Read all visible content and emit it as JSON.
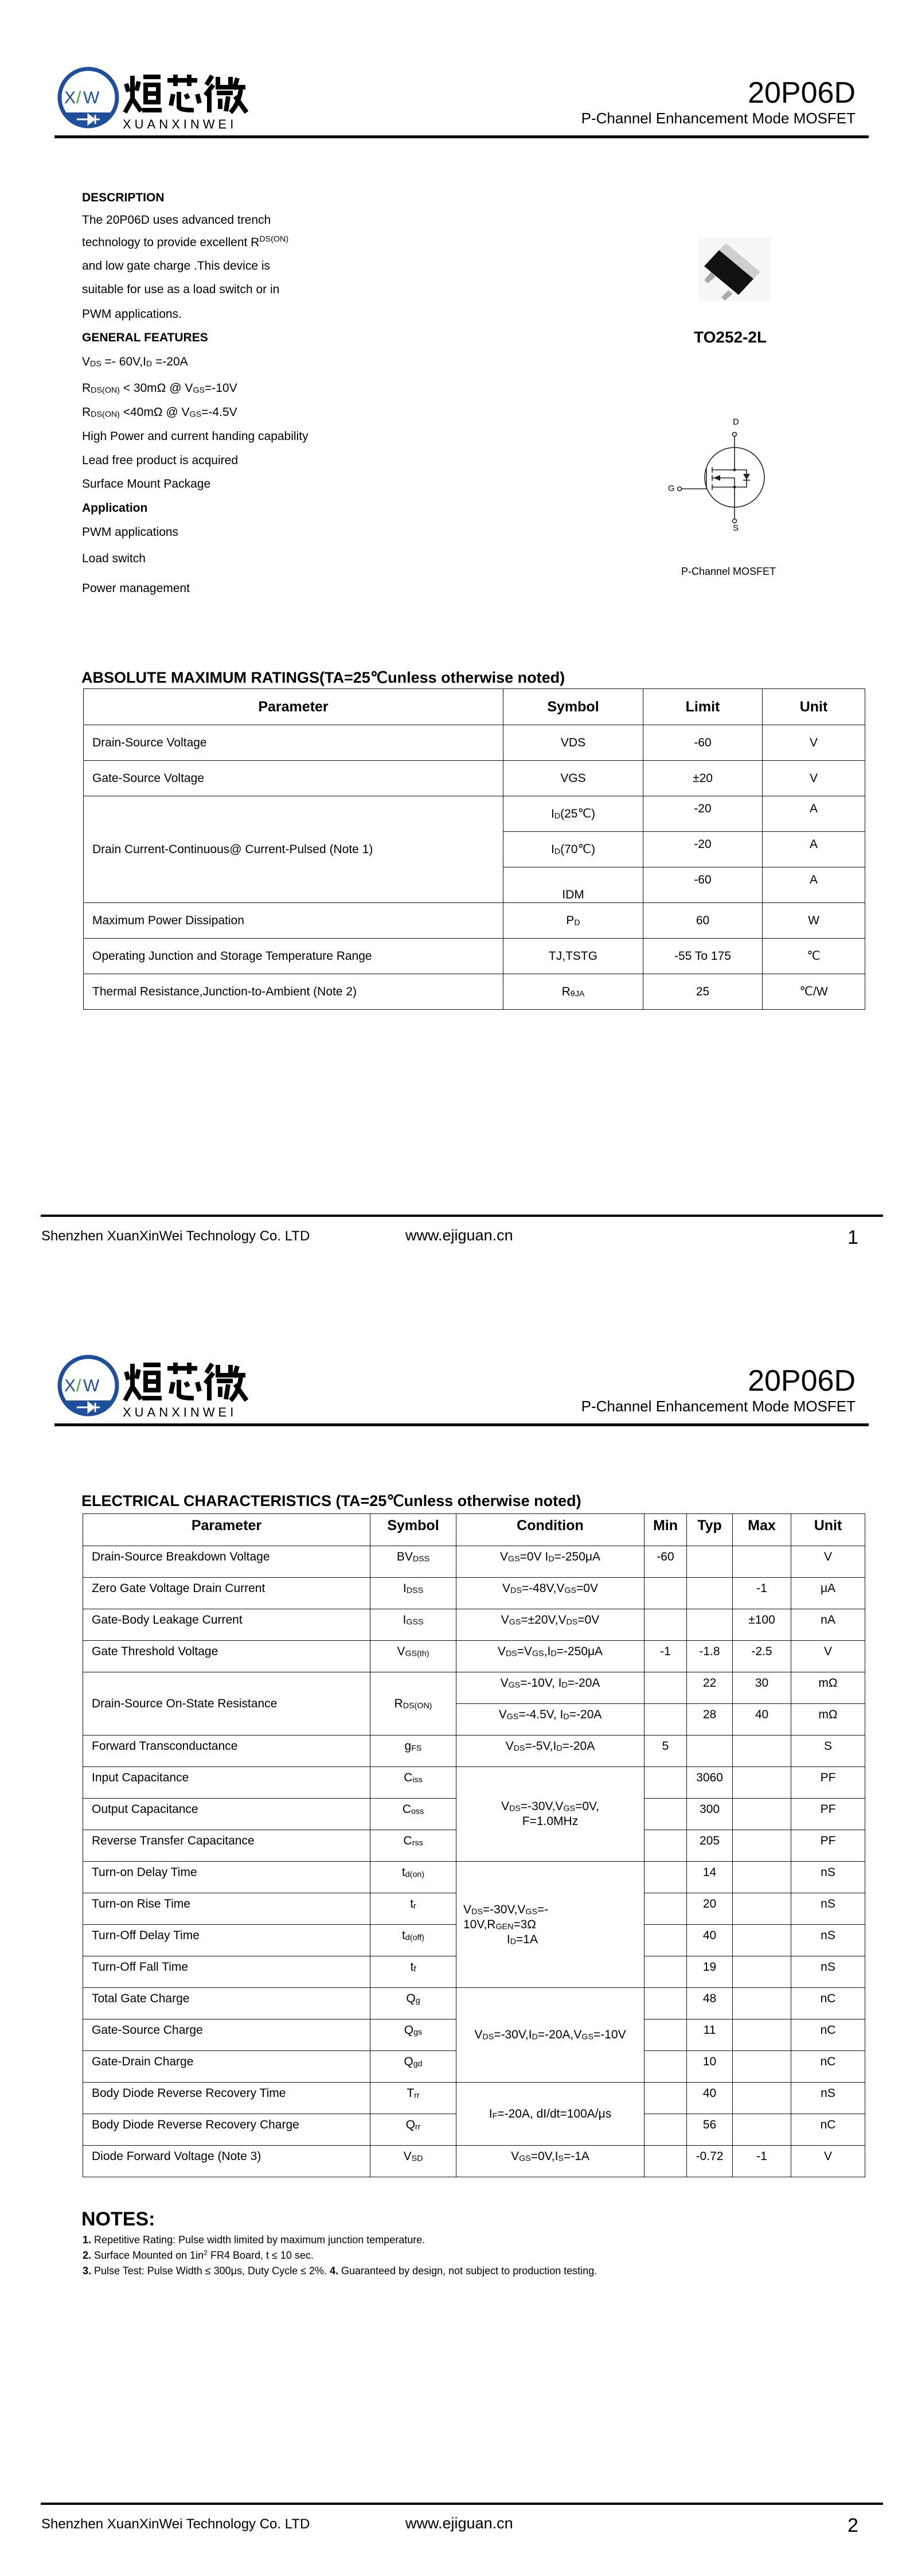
{
  "header": {
    "logo_mark": [
      "X",
      "/",
      "W"
    ],
    "logo_cn": "烜芯微",
    "logo_en": "XUANXINWEI",
    "part_number": "20P06D",
    "subtitle": "P-Channel Enhancement Mode MOSFET",
    "brand_blue": "#1d4f9c",
    "brand_green": "#3aa335"
  },
  "footer": {
    "company": "Shenzhen XuanXinWei Technology Co. LTD",
    "website": "www.ejiguan.cn"
  },
  "page1": {
    "page_number": "1",
    "description_heading": "DESCRIPTION",
    "description_lines": [
      [
        [
          "The  20P06D uses advanced trench"
        ]
      ],
      [
        [
          "technology to provide excellent R"
        ],
        [
          "DS(ON)",
          "sup"
        ]
      ],
      [
        [
          "and low gate charge .This device is"
        ]
      ],
      [
        [
          "suitable for use as a load switch or in"
        ]
      ],
      [
        [
          "PWM applications."
        ]
      ]
    ],
    "features_heading": "GENERAL FEATURES",
    "features": [
      [
        [
          "V"
        ],
        [
          "DS",
          "sub"
        ],
        [
          " =- 60V,I"
        ],
        [
          "D",
          "sub"
        ],
        [
          " =-20A"
        ]
      ],
      [
        [
          "R"
        ],
        [
          "DS(ON)",
          "sub"
        ],
        [
          " < 30mΩ @ V"
        ],
        [
          "GS",
          "sub"
        ],
        [
          "=-10V"
        ]
      ],
      [
        [
          "R"
        ],
        [
          "DS(ON)",
          "sub"
        ],
        [
          " <40mΩ @ V"
        ],
        [
          "GS",
          "sub"
        ],
        [
          "=-4.5V"
        ]
      ],
      [
        [
          "High Power and current handing capability"
        ]
      ],
      [
        [
          "Lead free product is acquired"
        ]
      ],
      [
        [
          "Surface Mount Package"
        ]
      ]
    ],
    "application_heading": "Application",
    "applications": [
      "PWM applications",
      "Load switch",
      "Power management"
    ],
    "package_label": "TO252-2L",
    "schematic": {
      "drain": "D",
      "gate": "G",
      "source": "S",
      "caption": "P-Channel MOSFET"
    },
    "abs_max": {
      "title": "ABSOLUTE MAXIMUM RATINGS(TA=25℃unless otherwise noted)",
      "headers": [
        "Parameter",
        "Symbol",
        "Limit",
        "Unit"
      ],
      "rows": [
        {
          "parameter": "Drain-Source Voltage",
          "entries": [
            {
              "symbol": [
                [
                  "VDS"
                ]
              ],
              "limit": "-60",
              "unit": "V"
            }
          ]
        },
        {
          "parameter": "Gate-Source Voltage",
          "entries": [
            {
              "symbol": [
                [
                  "VGS"
                ]
              ],
              "limit": "±20",
              "unit": "V"
            }
          ]
        },
        {
          "parameter": "Drain Current-Continuous@ Current-Pulsed (Note 1)",
          "entries": [
            {
              "symbol": [
                [
                  "I"
                ],
                [
                  "D",
                  "sub"
                ],
                [
                  "(25℃)"
                ]
              ],
              "limit": "-20",
              "unit": "A"
            },
            {
              "symbol": [
                [
                  "I"
                ],
                [
                  "D",
                  "sub"
                ],
                [
                  "(70℃)"
                ]
              ],
              "limit": "-20",
              "unit": "A"
            },
            {
              "symbol": [
                [
                  "IDM"
                ]
              ],
              "limit": "-60",
              "unit": "A"
            }
          ]
        },
        {
          "parameter": "Maximum Power Dissipation",
          "entries": [
            {
              "symbol": [
                [
                  "P"
                ],
                [
                  "D",
                  "sub"
                ]
              ],
              "limit": "60",
              "unit": "W"
            }
          ]
        },
        {
          "parameter": "Operating Junction and Storage Temperature Range",
          "entries": [
            {
              "symbol": [
                [
                  "TJ,TSTG"
                ]
              ],
              "limit": "-55 To 175",
              "unit": "℃"
            }
          ]
        },
        {
          "parameter": "Thermal Resistance,Junction-to-Ambient (Note 2)",
          "entries": [
            {
              "symbol": [
                [
                  "R"
                ],
                [
                  "θJA",
                  "sub"
                ]
              ],
              "limit": "25",
              "unit": "℃/W"
            }
          ]
        }
      ]
    }
  },
  "page2": {
    "page_number": "2",
    "electrical": {
      "title": "ELECTRICAL CHARACTERISTICS (TA=25℃unless otherwise noted)",
      "headers": [
        "Parameter",
        "Symbol",
        "Condition",
        "Min",
        "Typ",
        "Max",
        "Unit"
      ],
      "rows": [
        {
          "parameter": "Drain-Source Breakdown Voltage",
          "symbol": [
            [
              "BV"
            ],
            [
              "DSS",
              "sub"
            ]
          ],
          "condition": [
            [
              "V"
            ],
            [
              "GS",
              "sub"
            ],
            [
              "=0V I"
            ],
            [
              "D",
              "sub"
            ],
            [
              "=-250μA"
            ]
          ],
          "min": "-60",
          "typ": "",
          "max": "",
          "unit": "V"
        },
        {
          "parameter": "Zero Gate Voltage Drain Current",
          "symbol": [
            [
              "I"
            ],
            [
              "DSS",
              "sub"
            ]
          ],
          "condition": [
            [
              "V"
            ],
            [
              "DS",
              "sub"
            ],
            [
              "=-48V,V"
            ],
            [
              "GS",
              "sub"
            ],
            [
              "=0V"
            ]
          ],
          "min": "",
          "typ": "",
          "max": "-1",
          "unit": "μA"
        },
        {
          "parameter": "Gate-Body Leakage Current",
          "symbol": [
            [
              "I"
            ],
            [
              "GSS",
              "sub"
            ]
          ],
          "condition": [
            [
              "V"
            ],
            [
              "GS",
              "sub"
            ],
            [
              "=±20V,V"
            ],
            [
              "DS",
              "sub"
            ],
            [
              "=0V"
            ]
          ],
          "min": "",
          "typ": "",
          "max": "±100",
          "unit": "nA"
        },
        {
          "parameter": "Gate Threshold Voltage",
          "symbol": [
            [
              "V"
            ],
            [
              "GS(th)",
              "sub"
            ]
          ],
          "condition": [
            [
              "V"
            ],
            [
              "DS",
              "sub"
            ],
            [
              "=V"
            ],
            [
              "GS",
              "sub"
            ],
            [
              ",I"
            ],
            [
              "D",
              "sub"
            ],
            [
              "=-250μA"
            ]
          ],
          "min": "-1",
          "typ": "-1.8",
          "max": "-2.5",
          "unit": "V"
        },
        {
          "parameter": "Drain-Source On-State Resistance",
          "param_span": 2,
          "symbol": [
            [
              "R"
            ],
            [
              "DS(ON)",
              "sub"
            ]
          ],
          "condition": [
            [
              "V"
            ],
            [
              "GS",
              "sub"
            ],
            [
              "=-10V, I"
            ],
            [
              "D",
              "sub"
            ],
            [
              "=-20A"
            ]
          ],
          "min": "",
          "typ": "22",
          "max": "30",
          "unit": "mΩ"
        },
        {
          "condition": [
            [
              "V"
            ],
            [
              "GS",
              "sub"
            ],
            [
              "=-4.5V, I"
            ],
            [
              "D",
              "sub"
            ],
            [
              "=-20A"
            ]
          ],
          "min": "",
          "typ": "28",
          "max": "40",
          "unit": "mΩ"
        },
        {
          "parameter": "Forward Transconductance",
          "symbol": [
            [
              "g"
            ],
            [
              "FS",
              "sub"
            ]
          ],
          "condition": [
            [
              "V"
            ],
            [
              "DS",
              "sub"
            ],
            [
              "=-5V,I"
            ],
            [
              "D",
              "sub"
            ],
            [
              "=-20A"
            ]
          ],
          "min": "5",
          "typ": "",
          "max": "",
          "unit": "S"
        },
        {
          "parameter": "Input Capacitance",
          "symbol": [
            [
              "C"
            ],
            [
              "iss",
              "sub"
            ]
          ],
          "condition": [
            [
              "V"
            ],
            [
              "DS",
              "sub"
            ],
            [
              "=-30V,V"
            ],
            [
              "GS",
              "sub"
            ],
            [
              "=0V,\nF=1.0MHz"
            ]
          ],
          "cond_span": 3,
          "min": "",
          "typ": "3060",
          "max": "",
          "unit": "PF"
        },
        {
          "parameter": "Output Capacitance",
          "symbol": [
            [
              "C"
            ],
            [
              "oss",
              "sub"
            ]
          ],
          "min": "",
          "typ": "300",
          "max": "",
          "unit": "PF"
        },
        {
          "parameter": "Reverse Transfer Capacitance",
          "symbol": [
            [
              "C"
            ],
            [
              "rss",
              "sub"
            ]
          ],
          "min": "",
          "typ": "205",
          "max": "",
          "unit": "PF"
        },
        {
          "parameter": "Turn-on Delay Time",
          "symbol": [
            [
              "t"
            ],
            [
              "d(on)",
              "sub"
            ]
          ],
          "condition": [
            [
              "V"
            ],
            [
              "DS",
              "sub"
            ],
            [
              "=-30V,V"
            ],
            [
              "GS",
              "sub"
            ],
            [
              "=-\n10V,R"
            ],
            [
              "GEN",
              "sub"
            ],
            [
              "=3Ω\n             I"
            ],
            [
              "D",
              "sub"
            ],
            [
              "=1A"
            ]
          ],
          "cond_span": 4,
          "cond_align": "left",
          "min": "",
          "typ": "14",
          "max": "",
          "unit": "nS"
        },
        {
          "parameter": "Turn-on Rise Time",
          "symbol": [
            [
              "t"
            ],
            [
              "r",
              "sub"
            ]
          ],
          "min": "",
          "typ": "20",
          "max": "",
          "unit": "nS"
        },
        {
          "parameter": "Turn-Off Delay Time",
          "symbol": [
            [
              "t"
            ],
            [
              "d(off)",
              "sub"
            ]
          ],
          "min": "",
          "typ": "40",
          "max": "",
          "unit": "nS"
        },
        {
          "parameter": "Turn-Off Fall Time",
          "symbol": [
            [
              "t"
            ],
            [
              "f",
              "sub"
            ]
          ],
          "min": "",
          "typ": "19",
          "max": "",
          "unit": "nS"
        },
        {
          "parameter": "Total Gate Charge",
          "symbol": [
            [
              "Q"
            ],
            [
              "g",
              "sub"
            ]
          ],
          "condition": [
            [
              "V"
            ],
            [
              "DS",
              "sub"
            ],
            [
              "=-30V,I"
            ],
            [
              "D",
              "sub"
            ],
            [
              "=-20A,V"
            ],
            [
              "GS",
              "sub"
            ],
            [
              "=-10V"
            ]
          ],
          "cond_span": 3,
          "min": "",
          "typ": "48",
          "max": "",
          "unit": "nC"
        },
        {
          "parameter": "Gate-Source Charge",
          "symbol": [
            [
              "Q"
            ],
            [
              "gs",
              "sub"
            ]
          ],
          "min": "",
          "typ": "11",
          "max": "",
          "unit": "nC"
        },
        {
          "parameter": "Gate-Drain Charge",
          "symbol": [
            [
              "Q"
            ],
            [
              "gd",
              "sub"
            ]
          ],
          "min": "",
          "typ": "10",
          "max": "",
          "unit": "nC"
        },
        {
          "parameter": "Body Diode Reverse Recovery Time",
          "symbol": [
            [
              "T"
            ],
            [
              "rr",
              "sub"
            ]
          ],
          "condition": [
            [
              "I"
            ],
            [
              "F",
              "sub"
            ],
            [
              "=-20A, dI/dt=100A/μs"
            ]
          ],
          "cond_span": 2,
          "min": "",
          "typ": "40",
          "max": "",
          "unit": "nS"
        },
        {
          "parameter": "Body Diode Reverse Recovery Charge",
          "symbol": [
            [
              "Q"
            ],
            [
              "rr",
              "sub"
            ]
          ],
          "min": "",
          "typ": "56",
          "max": "",
          "unit": "nC"
        },
        {
          "parameter": "Diode Forward Voltage (Note 3)",
          "symbol": [
            [
              "V"
            ],
            [
              "SD",
              "sub"
            ]
          ],
          "condition": [
            [
              "V"
            ],
            [
              "GS",
              "sub"
            ],
            [
              "=0V,I"
            ],
            [
              "S",
              "sub"
            ],
            [
              "=-1A"
            ]
          ],
          "min": "",
          "typ": "-0.72",
          "max": "-1",
          "unit": "V"
        }
      ]
    },
    "notes_heading": "NOTES:",
    "notes": [
      [
        [
          "1.",
          "b"
        ],
        [
          " Repetitive Rating: Pulse width limited by maximum junction temperature."
        ]
      ],
      [
        [
          "2.",
          "b"
        ],
        [
          " Surface Mounted on 1in"
        ],
        [
          "2",
          "sup"
        ],
        [
          " FR4 Board, t ≤ 10 sec."
        ]
      ],
      [
        [
          "3.",
          "b"
        ],
        [
          " Pulse Test: Pulse Width ≤ 300μs, Duty Cycle ≤ 2%. "
        ],
        [
          "4.",
          "b"
        ],
        [
          " Guaranteed by design, not subject to production testing."
        ]
      ]
    ]
  }
}
